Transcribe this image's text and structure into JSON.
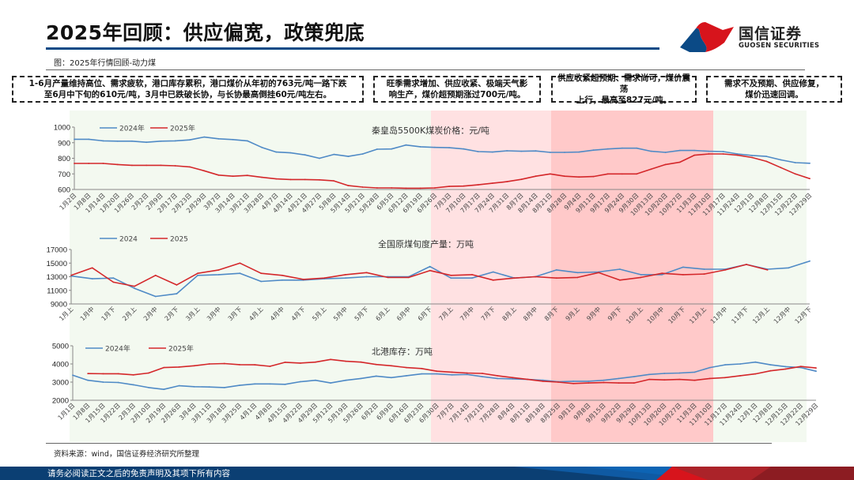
{
  "header": {
    "title": "2025年回顾：供应偏宽，政策兜底",
    "figure_caption": "图：2025年行情回顾-动力煤",
    "logo_cn": "国信证券",
    "logo_en": "GUOSEN SECURITIES"
  },
  "notes": [
    {
      "line1": "1-6月产量维持高位、需求疲软，港口库存累积，港口煤价从年初的763元/吨一路下跌",
      "line2": "至6月中下旬的610元/吨，3月中已跌破长协，与长协最高倒挂60元/吨左右。"
    },
    {
      "line1": "旺季需求增加、供应收紧、极端天气影",
      "line2": "响生产，煤价超预期涨过700元/吨。"
    },
    {
      "line1": "供应收紧超预期、需求尚可，煤价震荡",
      "line2": "上行，最高至827元/吨。"
    },
    {
      "line1": "需求不及预期、供应修复，",
      "line2": "煤价迅速回调。"
    }
  ],
  "footer": {
    "source": "资料来源：wind，国信证券经济研究所整理",
    "disclaimer": "请务必阅读正文之后的免责声明及其项下所有内容"
  },
  "phases": [
    {
      "name": "phase-1",
      "color": "#f3f9f0"
    },
    {
      "name": "phase-2",
      "color": "#ffe1e2"
    },
    {
      "name": "phase-3",
      "color": "#ffc9c9"
    },
    {
      "name": "phase-4",
      "color": "#f3f9f0"
    }
  ],
  "colors": {
    "series_2024": "#4f8ac6",
    "series_2025": "#d4272a",
    "brand_blue": "#0b4a86",
    "brand_red": "#d7141c"
  },
  "chart_data": [
    {
      "type": "line",
      "title": "秦皇岛5500K煤炭价格：元/吨",
      "ylim": [
        600,
        1000
      ],
      "yticks": [
        600,
        700,
        800,
        900,
        1000
      ],
      "xticks": [
        "1月2日",
        "1月8日",
        "1月14日",
        "1月20日",
        "1月26日",
        "2月2日",
        "2月9日",
        "2月17日",
        "2月23日",
        "2月29日",
        "3月7日",
        "3月14日",
        "3月21日",
        "3月28日",
        "4月7日",
        "4月14日",
        "4月21日",
        "4月27日",
        "5月8日",
        "5月14日",
        "5月21日",
        "5月28日",
        "6月5日",
        "6月12日",
        "6月19日",
        "6月26日",
        "7月3日",
        "7月10日",
        "7月17日",
        "7月24日",
        "7月31日",
        "8月7日",
        "8月14日",
        "8月21日",
        "8月28日",
        "9月4日",
        "9月11日",
        "9月17日",
        "9月24日",
        "9月30日",
        "10月13日",
        "10月20日",
        "10月27日",
        "11月3日",
        "11月10日",
        "11月17日",
        "11月24日",
        "12月1日",
        "12月8日",
        "12月15日",
        "12月22日",
        "12月29日"
      ],
      "legend": [
        "2024年",
        "2025年"
      ],
      "series": [
        {
          "name": "2024年",
          "values": [
            922,
            922,
            912,
            910,
            910,
            903,
            910,
            912,
            918,
            936,
            925,
            920,
            912,
            870,
            840,
            835,
            822,
            800,
            825,
            812,
            828,
            858,
            860,
            885,
            874,
            870,
            868,
            860,
            843,
            840,
            848,
            845,
            847,
            838,
            838,
            840,
            852,
            860,
            865,
            865,
            845,
            838,
            850,
            850,
            845,
            843,
            828,
            818,
            812,
            790,
            772,
            768
          ]
        },
        {
          "name": "2025年",
          "values": [
            767,
            767,
            767,
            760,
            755,
            755,
            755,
            752,
            745,
            720,
            692,
            685,
            690,
            678,
            668,
            664,
            664,
            662,
            655,
            625,
            615,
            610,
            610,
            608,
            608,
            610,
            620,
            622,
            630,
            640,
            650,
            665,
            685,
            700,
            685,
            680,
            683,
            700,
            700,
            700,
            730,
            760,
            775,
            820,
            828,
            828,
            820,
            805,
            780,
            740,
            700,
            670
          ]
        }
      ]
    },
    {
      "type": "line",
      "title": "全国原煤旬度产量：万吨",
      "ylim": [
        9000,
        17000
      ],
      "yticks": [
        9000,
        11000,
        13000,
        15000,
        17000
      ],
      "xticks": [
        "1月上",
        "1月中",
        "1月下",
        "2月上",
        "2月中",
        "2月下",
        "3月上",
        "3月中",
        "3月下",
        "4月上",
        "4月中",
        "4月下",
        "5月上",
        "5月中",
        "5月下",
        "6月上",
        "6月中",
        "6月下",
        "7月上",
        "7月中",
        "7月下",
        "8月上",
        "8月中",
        "8月下",
        "9月上",
        "9月中",
        "9月下",
        "10月上",
        "10月中",
        "10月下",
        "11月上",
        "11月中",
        "11月下",
        "12月上",
        "12月中",
        "12月下"
      ],
      "legend": [
        "2024",
        "2025"
      ],
      "series": [
        {
          "name": "2024",
          "values": [
            13100,
            12700,
            12800,
            11300,
            10100,
            10500,
            13200,
            13300,
            13500,
            12300,
            12500,
            12500,
            12700,
            12800,
            13000,
            13000,
            13000,
            14500,
            12800,
            12800,
            13700,
            12800,
            13000,
            14000,
            13600,
            13700,
            14100,
            13300,
            13300,
            14400,
            14100,
            14100,
            14800,
            14100,
            14300,
            15300
          ]
        },
        {
          "name": "2025",
          "values": [
            13200,
            14300,
            12200,
            11600,
            13200,
            11800,
            13500,
            14000,
            15000,
            13500,
            13200,
            12600,
            12800,
            13300,
            13600,
            12900,
            12900,
            13900,
            13200,
            13300,
            12500,
            12800,
            13000,
            12800,
            12900,
            13600,
            12500,
            12900,
            13500,
            13300,
            13400,
            14000,
            14800,
            14000
          ]
        }
      ]
    },
    {
      "type": "line",
      "title": "北港库存：万吨",
      "ylim": [
        2000,
        5000
      ],
      "yticks": [
        2000,
        3000,
        4000,
        5000
      ],
      "xticks": [
        "1月1日",
        "1月8日",
        "1月15日",
        "1月22日",
        "2月3日",
        "2月10日",
        "2月19日",
        "2月26日",
        "3月4日",
        "3月11日",
        "3月18日",
        "3月25日",
        "4月1日",
        "4月8日",
        "4月15日",
        "4月22日",
        "4月29日",
        "5月12日",
        "5月19日",
        "5月26日",
        "6月2日",
        "6月9日",
        "6月16日",
        "6月23日",
        "6月30日",
        "7月7日",
        "7月14日",
        "7月21日",
        "7月28日",
        "8月4日",
        "8月11日",
        "8月18日",
        "8月25日",
        "9月1日",
        "9月8日",
        "9月15日",
        "9月22日",
        "9月29日",
        "10月13日",
        "10月20日",
        "10月27日",
        "11月3日",
        "11月10日",
        "11月17日",
        "11月24日",
        "12月1日",
        "12月8日",
        "12月15日",
        "12月22日",
        "12月29日"
      ],
      "legend": [
        "2024年",
        "2025年"
      ],
      "series": [
        {
          "name": "2024年",
          "values": [
            3380,
            3100,
            3000,
            2980,
            2850,
            2700,
            2600,
            2800,
            2750,
            2730,
            2700,
            2820,
            2900,
            2900,
            2880,
            3020,
            3100,
            2950,
            3100,
            3200,
            3330,
            3250,
            3350,
            3450,
            3450,
            3400,
            3420,
            3300,
            3200,
            3180,
            3150,
            3100,
            3020,
            3050,
            3050,
            3100,
            3200,
            3300,
            3420,
            3480,
            3500,
            3550,
            3800,
            3950,
            4000,
            4100,
            3950,
            3850,
            3800,
            3600
          ]
        },
        {
          "name": "2025年",
          "values": [
            null,
            3470,
            3460,
            3460,
            3400,
            3500,
            3800,
            3830,
            3900,
            4000,
            4020,
            3960,
            3950,
            3870,
            4090,
            4050,
            4100,
            4250,
            4150,
            4100,
            3970,
            3900,
            3800,
            3750,
            3600,
            3550,
            3500,
            3480,
            3350,
            3250,
            3150,
            3050,
            3000,
            2920,
            2950,
            2980,
            2950,
            2950,
            3150,
            3120,
            3150,
            3100,
            3200,
            3250,
            3350,
            3450,
            3620,
            3720,
            3860,
            3780
          ]
        }
      ]
    }
  ]
}
